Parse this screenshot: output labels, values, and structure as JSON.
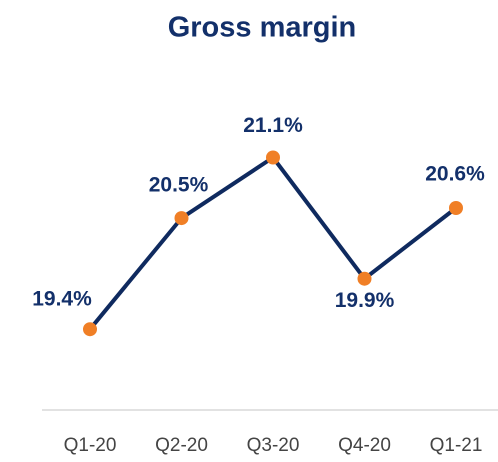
{
  "chart_data": {
    "type": "line",
    "title": "Gross margin",
    "categories": [
      "Q1-20",
      "Q2-20",
      "Q3-20",
      "Q4-20",
      "Q1-21"
    ],
    "values": [
      19.4,
      20.5,
      21.1,
      19.9,
      20.6
    ],
    "value_labels": [
      "19.4%",
      "20.5%",
      "21.1%",
      "19.9%",
      "20.6%"
    ],
    "color": "#0f2a5f",
    "marker_color": "#f07f26",
    "ylim": [
      18.6,
      21.6
    ]
  }
}
